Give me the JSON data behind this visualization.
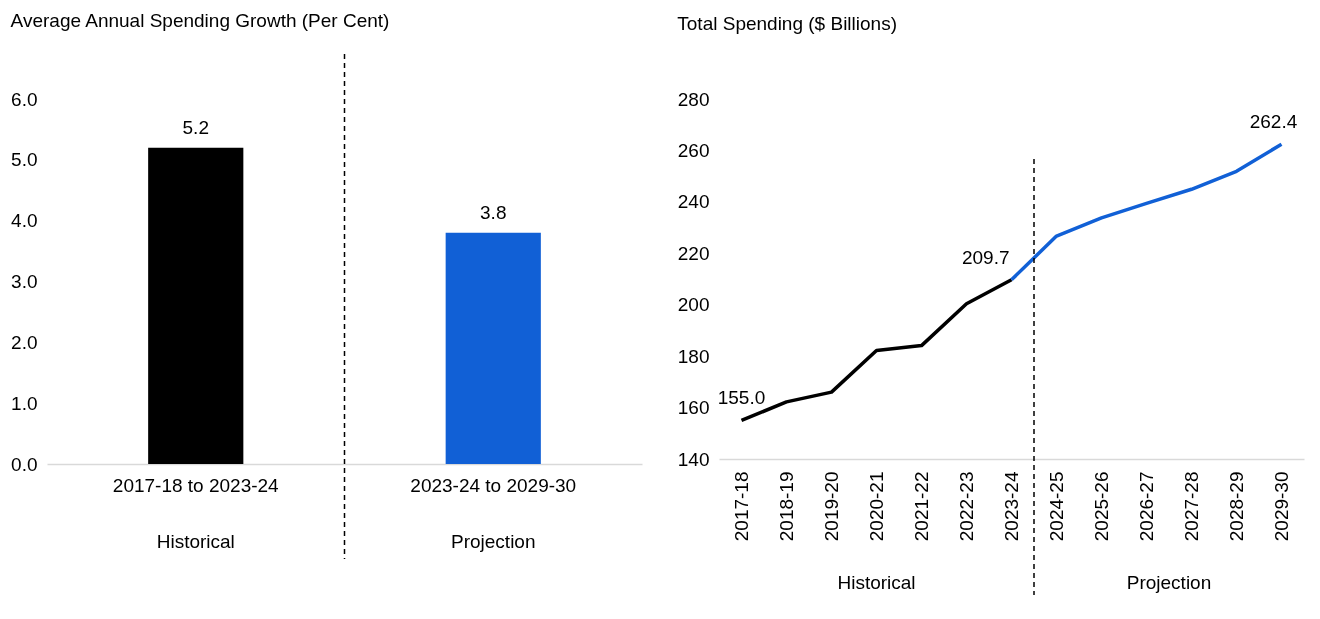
{
  "chart_data": [
    {
      "type": "bar",
      "title": "Average Annual Spending Growth (Per Cent)",
      "categories": [
        "2017-18 to 2023-24",
        "2023-24 to 2029-30"
      ],
      "colors": [
        "#000000",
        "#1160d6"
      ],
      "values": [
        5.2,
        3.8
      ],
      "data_labels": true,
      "ylim": [
        0,
        6
      ],
      "yticks": [
        {
          "value": 0,
          "label": "0.0"
        },
        {
          "value": 1,
          "label": "1.0"
        },
        {
          "value": 2,
          "label": "2.0"
        },
        {
          "value": 3,
          "label": "3.0"
        },
        {
          "value": 4,
          "label": "4.0"
        },
        {
          "value": 5,
          "label": "5.0"
        },
        {
          "value": 6,
          "label": "6.0"
        }
      ],
      "grid": false,
      "annotations": [
        "Historical",
        "Projection"
      ]
    },
    {
      "type": "line",
      "title": "Total Spending ($ Billions)",
      "categories": [
        "2017-18",
        "2018-19",
        "2019-20",
        "2020-21",
        "2021-22",
        "2022-23",
        "2023-24",
        "2024-25",
        "2025-26",
        "2026-27",
        "2027-28",
        "2028-29",
        "2029-30"
      ],
      "series": [
        {
          "color": "#000000",
          "values": [
            155.0,
            162.2,
            166.0,
            182.2,
            184.1,
            200.4,
            209.7,
            null,
            null,
            null,
            null,
            null,
            null
          ],
          "value_labels": [
            "155.0",
            null,
            null,
            null,
            null,
            null,
            "209.7",
            null,
            null,
            null,
            null,
            null,
            null
          ]
        },
        {
          "color": "#1160d6",
          "values": [
            null,
            null,
            null,
            null,
            null,
            null,
            209.7,
            226.7,
            233.8,
            239.4,
            244.9,
            251.9,
            262.4
          ],
          "value_labels": [
            null,
            null,
            null,
            null,
            null,
            null,
            null,
            null,
            null,
            null,
            null,
            null,
            "262.4"
          ]
        }
      ],
      "ylim": [
        140,
        280
      ],
      "yticks": [
        140,
        160,
        180,
        200,
        220,
        240,
        260,
        280
      ],
      "grid": false,
      "line_style": "solid",
      "marker": "none",
      "annotations": [
        "Historical",
        "Projection"
      ]
    }
  ]
}
